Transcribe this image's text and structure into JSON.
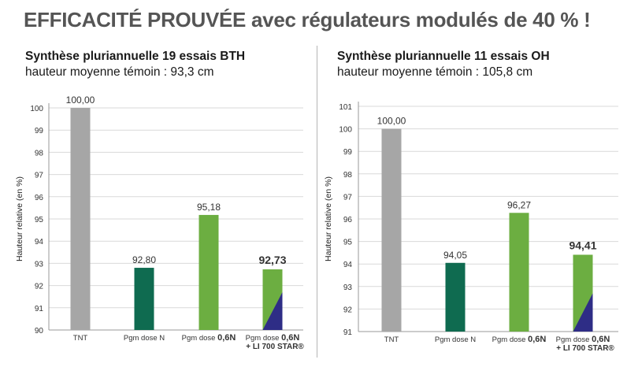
{
  "headline": "EFFICACITÉ PROUVÉE avec régulateurs modulés de 40 % !",
  "colors": {
    "tnt": "#a6a6a6",
    "dose_n": "#0f6b50",
    "dose_06n": "#6cae41",
    "li700_triangle": "#2e2d86",
    "grid": "#d9d9d9",
    "axis": "#9a9a9a"
  },
  "chart_data": [
    {
      "type": "bar",
      "title": "Synthèse pluriannuelle 19 essais BTH",
      "subtitle": "hauteur moyenne témoin : 93,3 cm",
      "ylabel": "Hauteur relative (en %)",
      "ylim": [
        90,
        100
      ],
      "yticks": [
        "90",
        "91",
        "92",
        "93",
        "94",
        "95",
        "96",
        "97",
        "98",
        "99",
        "100"
      ],
      "categories": [
        {
          "line1": "TNT",
          "bold1": "",
          "line2": ""
        },
        {
          "line1": "Pgm dose N",
          "bold1": "",
          "line2": ""
        },
        {
          "line1": "Pgm dose ",
          "bold1": "0,6N",
          "line2": ""
        },
        {
          "line1": "Pgm dose ",
          "bold1": "0,6N",
          "line2": "+ LI 700 STAR®"
        }
      ],
      "values": [
        100.0,
        92.8,
        95.18,
        92.73
      ],
      "value_labels": [
        "100,00",
        "92,80",
        "95,18",
        "92,73"
      ],
      "emphasis": [
        false,
        false,
        false,
        true
      ],
      "bar_colors": [
        "tnt",
        "dose_n",
        "dose_06n",
        "dose_06n"
      ],
      "triangle": [
        false,
        false,
        false,
        true
      ],
      "grid": true
    },
    {
      "type": "bar",
      "title": "Synthèse pluriannuelle 11 essais OH",
      "subtitle": "hauteur moyenne témoin : 105,8 cm",
      "ylabel": "Hauteur relative (en %)",
      "ylim": [
        91,
        101
      ],
      "yticks": [
        "91",
        "92",
        "93",
        "94",
        "95",
        "96",
        "97",
        "98",
        "99",
        "100",
        "101"
      ],
      "categories": [
        {
          "line1": "TNT",
          "bold1": "",
          "line2": ""
        },
        {
          "line1": "Pgm dose N",
          "bold1": "",
          "line2": ""
        },
        {
          "line1": "Pgm dose ",
          "bold1": "0,6N",
          "line2": ""
        },
        {
          "line1": "Pgm dose ",
          "bold1": "0,6N",
          "line2": "+ LI 700 STAR®"
        }
      ],
      "values": [
        100.0,
        94.05,
        96.27,
        94.41
      ],
      "value_labels": [
        "100,00",
        "94,05",
        "96,27",
        "94,41"
      ],
      "emphasis": [
        false,
        false,
        false,
        true
      ],
      "bar_colors": [
        "tnt",
        "dose_n",
        "dose_06n",
        "dose_06n"
      ],
      "triangle": [
        false,
        false,
        false,
        true
      ],
      "grid": true
    }
  ]
}
